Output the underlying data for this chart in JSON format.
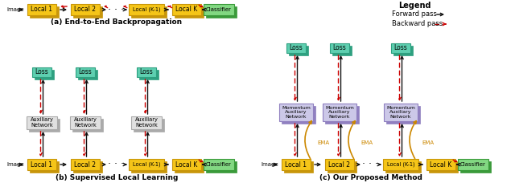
{
  "bg_color": "#ffffff",
  "local_box_color": "#f5c518",
  "local_box_edge": "#c8960a",
  "classifier_box_color": "#82d882",
  "classifier_box_edge": "#3a9a3a",
  "loss_box_color": "#5ecfb0",
  "loss_box_edge": "#2ea080",
  "aux_box_color": "#e0e0e0",
  "aux_box_edge": "#aaaaaa",
  "mom_box_color": "#ccc8e8",
  "mom_box_edge": "#9080c0",
  "forward_color": "#111111",
  "backward_color": "#cc0000",
  "ema_color": "#cc8800",
  "text_color": "#111111",
  "subtitle_a": "(a) End-to-End Backpropagation",
  "subtitle_b": "(b) Supervised Local Learning",
  "subtitle_c": "(c) Our Proposed Method",
  "legend_title": "Legend",
  "legend_forward": "Forward pass",
  "legend_backward": "Backward pass"
}
